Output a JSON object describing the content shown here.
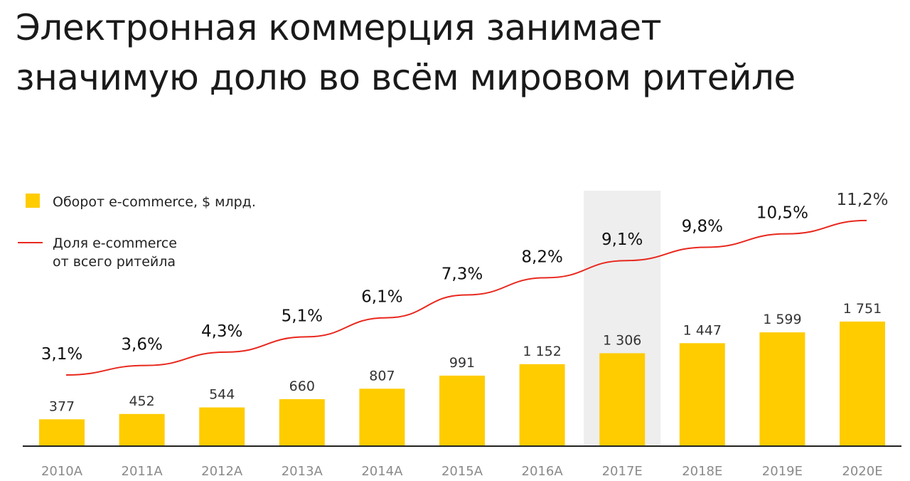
{
  "header": {
    "title_line1": "Электронная коммерция занимает",
    "title_line2": "значимую долю во всём мировом ритейле"
  },
  "legend": {
    "bar_label": "Оборот e-commerce, $ млрд.",
    "line_label_1": "Доля e-commerce",
    "line_label_2": "от всего ритейла"
  },
  "colors": {
    "bar": "#ffcc00",
    "line": "#e8281e",
    "highlight": "#eeeeee",
    "axis": "#222222"
  },
  "chart_data": {
    "type": "bar",
    "categories": [
      "2010A",
      "2011A",
      "2012A",
      "2013A",
      "2014A",
      "2015A",
      "2016A",
      "2017E",
      "2018E",
      "2019E",
      "2020E"
    ],
    "highlight_category": "2017E",
    "series": [
      {
        "name": "Оборот e-commerce, $ млрд.",
        "type": "bar",
        "values": [
          377,
          452,
          544,
          660,
          807,
          991,
          1152,
          1306,
          1447,
          1599,
          1751
        ],
        "labels": [
          "377",
          "452",
          "544",
          "660",
          "807",
          "991",
          "1 152",
          "1 306",
          "1 447",
          "1 599",
          "1 751"
        ]
      },
      {
        "name": "Доля e-commerce от всего ритейла",
        "type": "line",
        "values": [
          3.1,
          3.6,
          4.3,
          5.1,
          6.1,
          7.3,
          8.2,
          9.1,
          9.8,
          10.5,
          11.2
        ],
        "labels": [
          "3,1%",
          "3,6%",
          "4,3%",
          "5,1%",
          "6,1%",
          "7,3%",
          "8,2%",
          "9,1%",
          "9,8%",
          "10,5%",
          "11,2%"
        ]
      }
    ]
  }
}
